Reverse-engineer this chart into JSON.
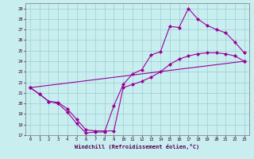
{
  "title": "",
  "xlabel": "Windchill (Refroidissement éolien,°C)",
  "ylabel": "",
  "xlim": [
    -0.5,
    23.5
  ],
  "ylim": [
    17,
    29.5
  ],
  "yticks": [
    17,
    18,
    19,
    20,
    21,
    22,
    23,
    24,
    25,
    26,
    27,
    28,
    29
  ],
  "xticks": [
    0,
    1,
    2,
    3,
    4,
    5,
    6,
    7,
    8,
    9,
    10,
    11,
    12,
    13,
    14,
    15,
    16,
    17,
    18,
    19,
    20,
    21,
    22,
    23
  ],
  "bg_color": "#c8eef0",
  "grid_color": "#9ecdd0",
  "line_color": "#990099",
  "line1_x": [
    0,
    1,
    2,
    3,
    4,
    5,
    6,
    7,
    8,
    9,
    10,
    11,
    12,
    13,
    14,
    15,
    16,
    17,
    18,
    19,
    20,
    21,
    22,
    23
  ],
  "line1_y": [
    21.5,
    20.9,
    20.2,
    20.0,
    19.2,
    18.1,
    17.2,
    17.3,
    17.3,
    19.8,
    21.8,
    22.8,
    23.2,
    24.6,
    24.9,
    27.3,
    27.2,
    29.0,
    28.0,
    27.4,
    27.0,
    26.7,
    25.8,
    24.8
  ],
  "line2_x": [
    0,
    1,
    2,
    3,
    4,
    5,
    6,
    7,
    8,
    9,
    10,
    11,
    12,
    13,
    14,
    15,
    16,
    17,
    18,
    19,
    20,
    21,
    22,
    23
  ],
  "line2_y": [
    21.5,
    20.9,
    20.2,
    20.1,
    19.5,
    18.5,
    17.5,
    17.4,
    17.4,
    17.4,
    21.5,
    21.8,
    22.1,
    22.5,
    23.0,
    23.7,
    24.2,
    24.5,
    24.7,
    24.8,
    24.8,
    24.7,
    24.5,
    24.0
  ],
  "line3_x": [
    0,
    23
  ],
  "line3_y": [
    21.5,
    24.0
  ],
  "marker": "D",
  "markersize": 2,
  "linewidth": 0.8
}
